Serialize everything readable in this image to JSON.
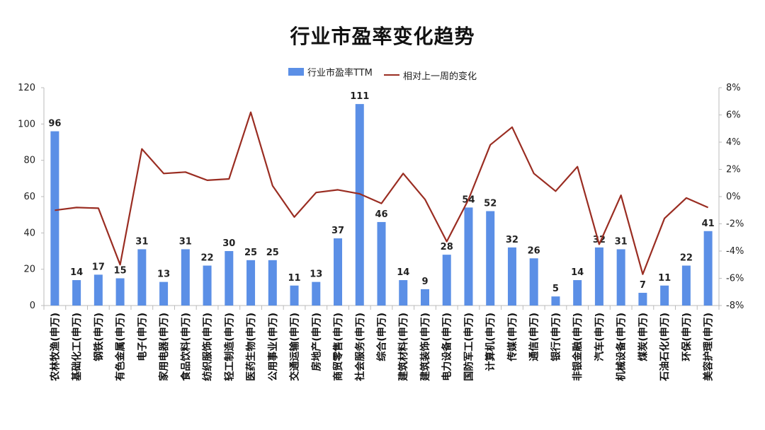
{
  "chart_data": {
    "type": "bar",
    "title": "行业市盈率变化趋势",
    "categories": [
      "农林牧渔(申万)",
      "基础化工(申万)",
      "钢铁(申万)",
      "有色金属(申万)",
      "电子(申万)",
      "家用电器(申万)",
      "食品饮料(申万)",
      "纺织服饰(申万)",
      "轻工制造(申万)",
      "医药生物(申万)",
      "公用事业(申万)",
      "交通运输(申万)",
      "房地产(申万)",
      "商贸零售(申万)",
      "社会服务(申万)",
      "综合(申万)",
      "建筑材料(申万)",
      "建筑装饰(申万)",
      "电力设备(申万)",
      "国防军工(申万)",
      "计算机(申万)",
      "传媒(申万)",
      "通信(申万)",
      "银行(申万)",
      "非银金融(申万)",
      "汽车(申万)",
      "机械设备(申万)",
      "煤炭(申万)",
      "石油石化(申万)",
      "环保(申万)",
      "美容护理(申万)"
    ],
    "series": [
      {
        "name": "行业市盈率TTM",
        "type": "bar",
        "axis": "left",
        "values": [
          96,
          14,
          17,
          15,
          31,
          13,
          31,
          22,
          30,
          25,
          25,
          11,
          13,
          37,
          111,
          46,
          14,
          9,
          28,
          54,
          52,
          32,
          26,
          5,
          14,
          32,
          31,
          7,
          11,
          22,
          41
        ]
      },
      {
        "name": "相对上一周的变化",
        "type": "line",
        "axis": "right",
        "values": [
          -1.0,
          -0.8,
          -0.85,
          -5.0,
          3.5,
          1.7,
          1.8,
          1.2,
          1.3,
          6.2,
          0.8,
          -1.5,
          0.3,
          0.5,
          0.2,
          -0.5,
          1.7,
          -0.2,
          -3.3,
          -0.2,
          3.8,
          5.1,
          1.7,
          0.4,
          2.2,
          -3.5,
          0.1,
          -5.7,
          -1.6,
          -0.1,
          -0.8
        ]
      }
    ],
    "ylim_left": [
      0,
      120
    ],
    "yticks_left": [
      "0",
      "20",
      "40",
      "60",
      "80",
      "100",
      "120"
    ],
    "ylim_right": [
      -8,
      8
    ],
    "yticks_right": [
      "-8%",
      "-6%",
      "-4%",
      "-2%",
      "0%",
      "2%",
      "4%",
      "6%",
      "8%"
    ],
    "legend": "top-center",
    "grid": false,
    "colors": {
      "bar": "#5b8fe6",
      "line": "#9a2d22"
    }
  }
}
